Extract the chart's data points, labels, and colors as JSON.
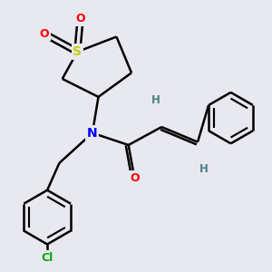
{
  "bg_color": "#e8e8f0",
  "atom_colors": {
    "S": "#cccc00",
    "O": "#ff0000",
    "N": "#0000ff",
    "Cl": "#00aa00",
    "C": "#000000",
    "H": "#4d8080"
  },
  "bond_color": "#000000",
  "bond_width": 1.8,
  "figsize": [
    3.0,
    3.0
  ],
  "dpi": 100
}
